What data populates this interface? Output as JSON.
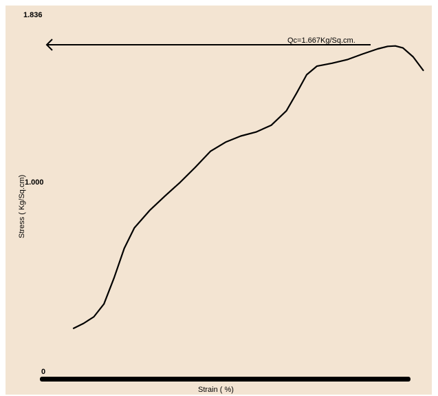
{
  "chart_data": {
    "type": "line",
    "title": "",
    "xlabel": "Strain ( %)",
    "ylabel": "Stress ( Kg/Sq.cm)",
    "y_tick_labels": [
      "1.836",
      "1.000",
      "0"
    ],
    "ylim": [
      0,
      1.836
    ],
    "colors": {
      "background": "#f3e4d2",
      "line": "#000000"
    },
    "annotation": {
      "text": "Qc=1.667Kg/Sq.cm.",
      "value": 1.667
    },
    "series": [
      {
        "values": [
          {
            "x": 0.0,
            "y": 0.244
          },
          {
            "x": 0.02,
            "y": 0.269
          },
          {
            "x": 0.04,
            "y": 0.302
          },
          {
            "x": 0.06,
            "y": 0.367
          },
          {
            "x": 0.08,
            "y": 0.499
          },
          {
            "x": 0.1,
            "y": 0.647
          },
          {
            "x": 0.12,
            "y": 0.75
          },
          {
            "x": 0.15,
            "y": 0.838
          },
          {
            "x": 0.18,
            "y": 0.91
          },
          {
            "x": 0.21,
            "y": 0.979
          },
          {
            "x": 0.24,
            "y": 1.055
          },
          {
            "x": 0.27,
            "y": 1.136
          },
          {
            "x": 0.3,
            "y": 1.182
          },
          {
            "x": 0.33,
            "y": 1.213
          },
          {
            "x": 0.36,
            "y": 1.233
          },
          {
            "x": 0.39,
            "y": 1.267
          },
          {
            "x": 0.42,
            "y": 1.34
          },
          {
            "x": 0.44,
            "y": 1.429
          },
          {
            "x": 0.46,
            "y": 1.522
          },
          {
            "x": 0.48,
            "y": 1.565
          },
          {
            "x": 0.51,
            "y": 1.58
          },
          {
            "x": 0.54,
            "y": 1.598
          },
          {
            "x": 0.57,
            "y": 1.626
          },
          {
            "x": 0.6,
            "y": 1.652
          },
          {
            "x": 0.62,
            "y": 1.665
          },
          {
            "x": 0.635,
            "y": 1.667
          },
          {
            "x": 0.65,
            "y": 1.657
          },
          {
            "x": 0.67,
            "y": 1.612
          },
          {
            "x": 0.69,
            "y": 1.544
          }
        ]
      }
    ]
  }
}
